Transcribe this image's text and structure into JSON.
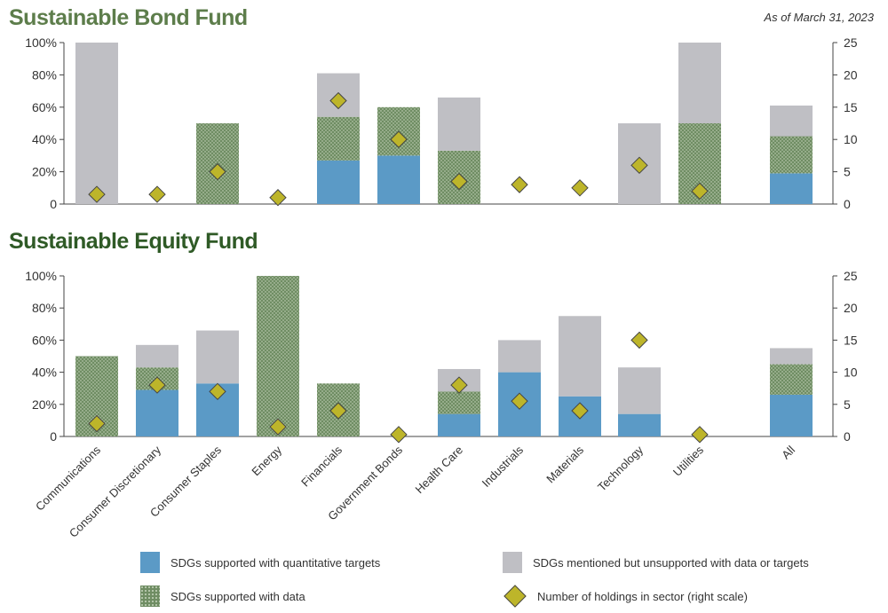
{
  "header": {
    "as_of": "As of March 31, 2023"
  },
  "legend": {
    "quant": "SDGs supported with quantitative targets",
    "data": "SDGs supported with data",
    "mentioned": "SDGs mentioned but unsupported with data or targets",
    "holdings": "Number of holdings in sector (right scale)"
  },
  "colors": {
    "quant": "#5b9ac6",
    "data": "#6f8d63",
    "mentioned": "#bfbfc4",
    "holdings": "#bdb52a",
    "bond_title": "#5d7d4b",
    "equity_title": "#2f5a26"
  },
  "chart_data": [
    {
      "type": "bar",
      "stacked": true,
      "title": "Sustainable Bond Fund",
      "categories": [
        "Communications",
        "Consumer Discretionary",
        "Consumer Staples",
        "Energy",
        "Financials",
        "Government Bonds",
        "Health Care",
        "Industrials",
        "Materials",
        "Technology",
        "Utilities",
        "All"
      ],
      "series": [
        {
          "name": "SDGs supported with quantitative targets",
          "values": [
            0,
            0,
            0,
            0,
            27,
            30,
            0,
            0,
            0,
            0,
            0,
            19
          ]
        },
        {
          "name": "SDGs supported with data",
          "values": [
            0,
            0,
            50,
            0,
            27,
            30,
            33,
            0,
            0,
            0,
            50,
            23
          ]
        },
        {
          "name": "SDGs mentioned but unsupported with data or targets",
          "values": [
            100,
            0,
            0,
            0,
            27,
            0,
            33,
            0,
            0,
            50,
            50,
            19
          ]
        },
        {
          "name": "Number of holdings in sector (right scale)",
          "axis": "right",
          "values": [
            1.5,
            1.5,
            5,
            1,
            16,
            10,
            3.5,
            3,
            2.5,
            6,
            2,
            null
          ]
        }
      ],
      "ylim": [
        0,
        100
      ],
      "yticks": [
        "0",
        "20%",
        "40%",
        "60%",
        "80%",
        "100%"
      ],
      "y2lim": [
        0,
        25
      ],
      "y2ticks": [
        "0",
        "5",
        "10",
        "15",
        "20",
        "25"
      ]
    },
    {
      "type": "bar",
      "stacked": true,
      "title": "Sustainable Equity Fund",
      "categories": [
        "Communications",
        "Consumer Discretionary",
        "Consumer Staples",
        "Energy",
        "Financials",
        "Government Bonds",
        "Health Care",
        "Industrials",
        "Materials",
        "Technology",
        "Utilities",
        "All"
      ],
      "series": [
        {
          "name": "SDGs supported with quantitative targets",
          "values": [
            0,
            29,
            33,
            0,
            0,
            0,
            14,
            40,
            25,
            14,
            0,
            26
          ]
        },
        {
          "name": "SDGs supported with data",
          "values": [
            50,
            14,
            0,
            100,
            33,
            0,
            14,
            0,
            0,
            0,
            0,
            19
          ]
        },
        {
          "name": "SDGs mentioned but unsupported with data or targets",
          "values": [
            0,
            14,
            33,
            0,
            0,
            0,
            14,
            20,
            50,
            29,
            0,
            10
          ]
        },
        {
          "name": "Number of holdings in sector (right scale)",
          "axis": "right",
          "values": [
            2,
            8,
            7,
            1.5,
            4,
            0.3,
            8,
            5.5,
            4,
            15,
            0.3,
            null
          ]
        }
      ],
      "ylim": [
        0,
        100
      ],
      "yticks": [
        "0",
        "20%",
        "40%",
        "60%",
        "80%",
        "100%"
      ],
      "y2lim": [
        0,
        25
      ],
      "y2ticks": [
        "0",
        "5",
        "10",
        "15",
        "20",
        "25"
      ]
    }
  ]
}
